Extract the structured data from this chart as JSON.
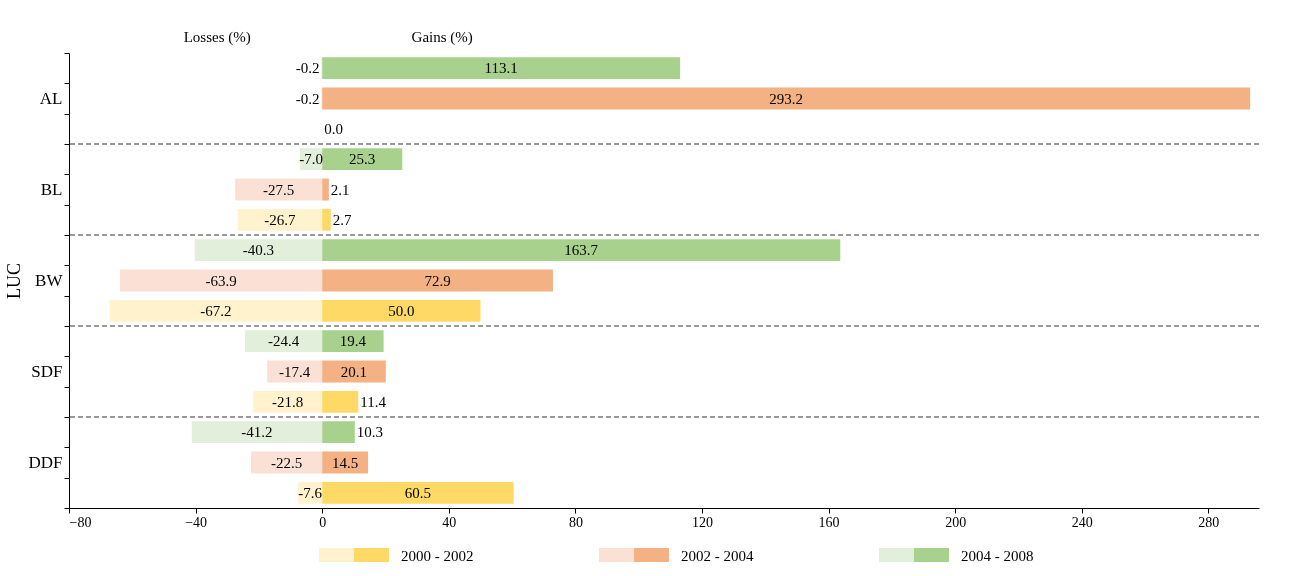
{
  "chart_data": {
    "type": "bar",
    "orientation": "horizontal",
    "stacked": true,
    "ylabel": "LUC",
    "annotations": [
      "Losses (%)",
      "Gains (%)"
    ],
    "categories": [
      null,
      "AL",
      null,
      null,
      "BL",
      null,
      null,
      "BW",
      null,
      null,
      "SDF",
      null,
      null,
      "DDF",
      null
    ],
    "series": [
      {
        "color": "#fff2cc",
        "values": [
          null,
          null,
          0.0,
          null,
          null,
          -26.7,
          null,
          null,
          -67.2,
          null,
          null,
          -21.8,
          null,
          null,
          -7.6
        ],
        "value_labels": [
          null,
          null,
          "0.0",
          null,
          null,
          "-26.7",
          null,
          null,
          "-67.2",
          null,
          null,
          "-21.8",
          null,
          null,
          "-7.6"
        ]
      },
      {
        "name": "2000 - 2002",
        "color": "#ffd966",
        "values": [
          null,
          null,
          0.0,
          null,
          null,
          2.7,
          null,
          null,
          50.0,
          null,
          null,
          11.4,
          null,
          null,
          60.5
        ],
        "value_labels": [
          null,
          null,
          null,
          null,
          null,
          "2.7",
          null,
          null,
          "50.0",
          null,
          null,
          "11.4",
          null,
          null,
          "60.5"
        ]
      },
      {
        "color": "#fbe1d5",
        "values": [
          null,
          -0.2,
          null,
          null,
          -27.5,
          null,
          null,
          -63.9,
          null,
          null,
          -17.4,
          null,
          null,
          -22.5,
          null
        ],
        "value_labels": [
          null,
          "-0.2",
          null,
          null,
          "-27.5",
          null,
          null,
          "-63.9",
          null,
          null,
          "-17.4",
          null,
          null,
          "-22.5",
          null
        ]
      },
      {
        "name": "2002 - 2004",
        "color": "#f4b183",
        "values": [
          null,
          293.2,
          null,
          null,
          2.1,
          null,
          null,
          72.9,
          null,
          null,
          20.1,
          null,
          null,
          14.5,
          null
        ],
        "value_labels": [
          null,
          "293.2",
          null,
          null,
          "2.1",
          null,
          null,
          "72.9",
          null,
          null,
          "20.1",
          null,
          null,
          "14.5",
          null
        ]
      },
      {
        "color": "#e2efda",
        "values": [
          -0.2,
          null,
          null,
          -7.0,
          null,
          null,
          -40.3,
          null,
          null,
          -24.4,
          null,
          null,
          -41.2,
          null,
          null
        ],
        "value_labels": [
          "-0.2",
          null,
          null,
          "-7.0",
          null,
          null,
          "-40.3",
          null,
          null,
          "-24.4",
          null,
          null,
          "-41.2",
          null,
          null
        ]
      },
      {
        "name": "2004 - 2008",
        "color": "#a9d18e",
        "values": [
          113.1,
          null,
          null,
          25.3,
          null,
          null,
          163.7,
          null,
          null,
          19.4,
          null,
          null,
          10.3,
          null,
          null
        ],
        "value_labels": [
          "113.1",
          null,
          null,
          "25.3",
          null,
          null,
          "163.7",
          null,
          null,
          "19.4",
          null,
          null,
          "10.3",
          null,
          null
        ]
      }
    ],
    "xlim": [
      -80,
      296
    ],
    "xticks": [
      -80,
      -40,
      0,
      40,
      80,
      120,
      160,
      200,
      240,
      280
    ],
    "grid": false,
    "legend": "bottom"
  }
}
